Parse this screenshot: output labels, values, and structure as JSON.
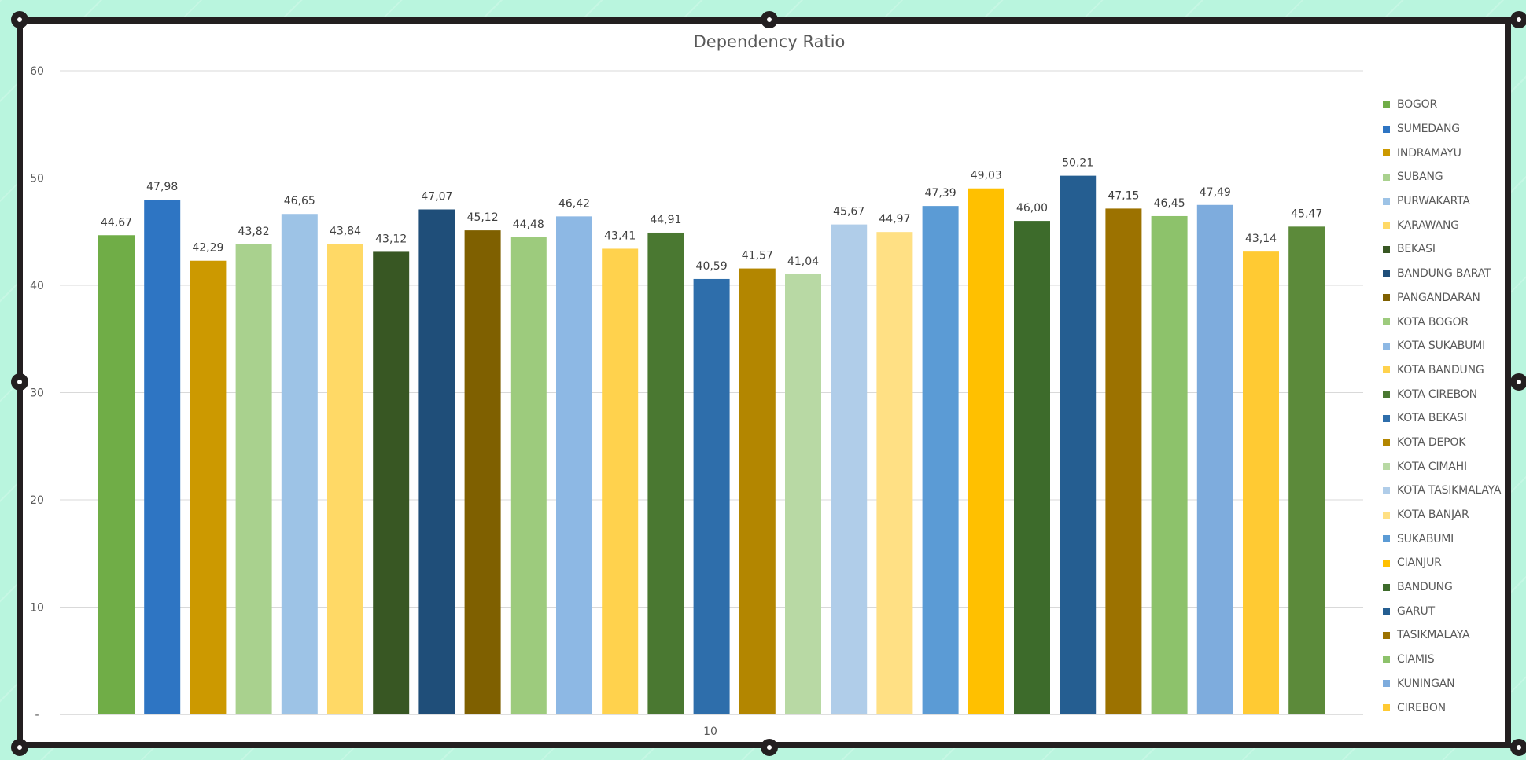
{
  "chart_data": {
    "type": "bar",
    "title": "Dependency Ratio",
    "xlabel": "",
    "ylabel": "",
    "x_category_label": "10",
    "ylim": [
      0,
      60
    ],
    "yticks": [
      0,
      10,
      20,
      30,
      40,
      50,
      60
    ],
    "ytick_labels": [
      "-",
      "10",
      "20",
      "30",
      "40",
      "50",
      "60"
    ],
    "grid": true,
    "legend_position": "right",
    "series": [
      {
        "name": "BOGOR",
        "value": 44.67,
        "label": "44,67",
        "color": "#70ad47"
      },
      {
        "name": "SUMEDANG",
        "value": 47.98,
        "label": "47,98",
        "color": "#2e75c3"
      },
      {
        "name": "INDRAMAYU",
        "value": 42.29,
        "label": "42,29",
        "color": "#cc9900"
      },
      {
        "name": "SUBANG",
        "value": 43.82,
        "label": "43,82",
        "color": "#a9d18e"
      },
      {
        "name": "PURWAKARTA",
        "value": 46.65,
        "label": "46,65",
        "color": "#9dc3e6"
      },
      {
        "name": "KARAWANG",
        "value": 43.84,
        "label": "43,84",
        "color": "#ffd966"
      },
      {
        "name": "BEKASI",
        "value": 43.12,
        "label": "43,12",
        "color": "#385723"
      },
      {
        "name": "BANDUNG BARAT",
        "value": 47.07,
        "label": "47,07",
        "color": "#1f4e79"
      },
      {
        "name": "PANGANDARAN",
        "value": 45.12,
        "label": "45,12",
        "color": "#7f6000"
      },
      {
        "name": "KOTA BOGOR",
        "value": 44.48,
        "label": "44,48",
        "color": "#9dcb7d"
      },
      {
        "name": "KOTA SUKABUMI",
        "value": 46.42,
        "label": "46,42",
        "color": "#8db8e4"
      },
      {
        "name": "KOTA BANDUNG",
        "value": 43.41,
        "label": "43,41",
        "color": "#ffd24d"
      },
      {
        "name": "KOTA CIREBON",
        "value": 44.91,
        "label": "44,91",
        "color": "#4a7831"
      },
      {
        "name": "KOTA BEKASI",
        "value": 40.59,
        "label": "40,59",
        "color": "#2e6eab"
      },
      {
        "name": "KOTA DEPOK",
        "value": 41.57,
        "label": "41,57",
        "color": "#b38600"
      },
      {
        "name": "KOTA CIMAHI",
        "value": 41.04,
        "label": "41,04",
        "color": "#b8d9a4"
      },
      {
        "name": "KOTA TASIKMALAYA",
        "value": 45.67,
        "label": "45,67",
        "color": "#b0cde9"
      },
      {
        "name": "KOTA BANJAR",
        "value": 44.97,
        "label": "44,97",
        "color": "#ffe084"
      },
      {
        "name": "SUKABUMI",
        "value": 47.39,
        "label": "47,39",
        "color": "#5b9bd5"
      },
      {
        "name": "CIANJUR",
        "value": 49.03,
        "label": "49,03",
        "color": "#ffc000"
      },
      {
        "name": "BANDUNG",
        "value": 46.0,
        "label": "46,00",
        "color": "#3d6b2b"
      },
      {
        "name": "GARUT",
        "value": 50.21,
        "label": "50,21",
        "color": "#255e91"
      },
      {
        "name": "TASIKMALAYA",
        "value": 47.15,
        "label": "47,15",
        "color": "#9c7200"
      },
      {
        "name": "CIAMIS",
        "value": 46.45,
        "label": "46,45",
        "color": "#8dc26b"
      },
      {
        "name": "KUNINGAN",
        "value": 47.49,
        "label": "47,49",
        "color": "#7eacdd"
      },
      {
        "name": "CIREBON",
        "value": 43.14,
        "label": "43,14",
        "color": "#ffca33"
      },
      {
        "name": "",
        "value": 45.47,
        "label": "45,47",
        "color": "#5c8a3a"
      }
    ]
  }
}
